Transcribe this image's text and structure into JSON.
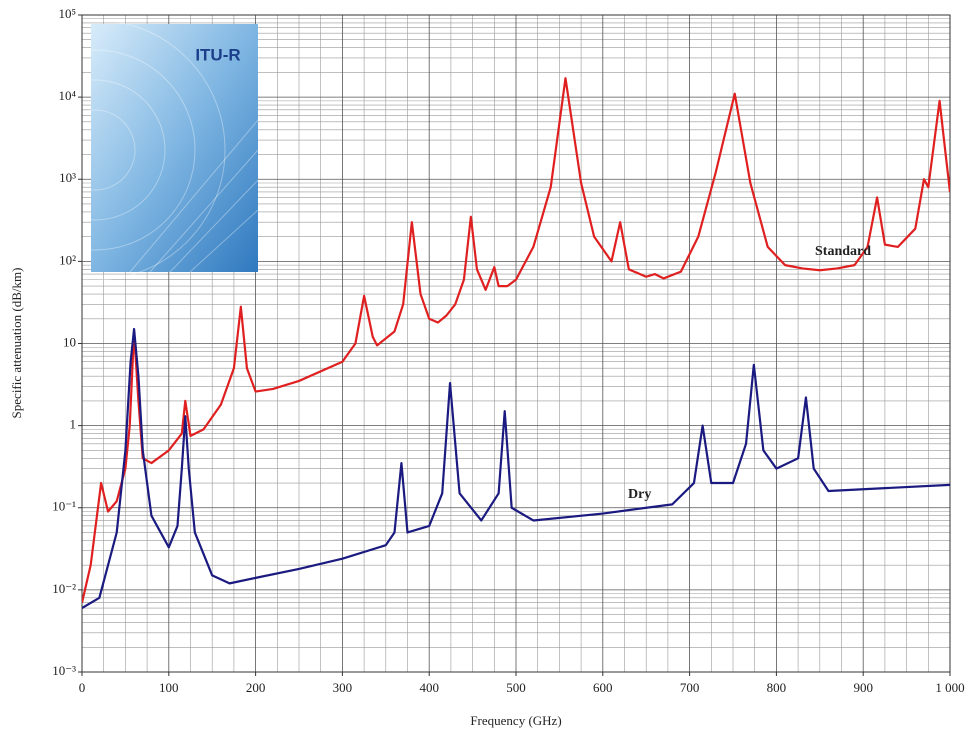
{
  "chart_data": {
    "type": "line",
    "x_label": "Frequency (GHz)",
    "y_label": "Specific attenuation (dB/km)",
    "yscale": "log",
    "grid": true,
    "minor_grid": true,
    "xlim": [
      0,
      1000
    ],
    "xticks": [
      0,
      100,
      200,
      300,
      400,
      500,
      600,
      700,
      800,
      900,
      {
        "value": 1000,
        "label": "1 000"
      }
    ],
    "ylim": [
      0.001,
      100000
    ],
    "yticks": [
      {
        "value": 0.001,
        "label": "10⁻³"
      },
      {
        "value": 0.01,
        "label": "10⁻²"
      },
      {
        "value": 0.1,
        "label": "10⁻¹"
      },
      1,
      10,
      {
        "value": 100,
        "label": "10²"
      },
      {
        "value": 1000,
        "label": "10³"
      },
      {
        "value": 10000,
        "label": "10⁴"
      },
      {
        "value": 100000,
        "label": "10⁵"
      }
    ],
    "inset": {
      "title": "ITU-R"
    },
    "series": [
      {
        "name": "Standard",
        "color": "#e02020",
        "x": [
          0,
          10,
          22,
          30,
          40,
          50,
          55,
          60,
          65,
          70,
          80,
          100,
          115,
          119,
          125,
          140,
          160,
          175,
          183,
          190,
          200,
          220,
          250,
          300,
          315,
          325,
          335,
          340,
          360,
          370,
          380,
          390,
          400,
          410,
          420,
          430,
          440,
          448,
          455,
          465,
          475,
          480,
          490,
          500,
          520,
          540,
          557,
          575,
          590,
          610,
          620,
          630,
          650,
          660,
          670,
          690,
          710,
          730,
          752,
          770,
          790,
          810,
          830,
          850,
          870,
          890,
          905,
          916,
          925,
          940,
          960,
          970,
          975,
          988,
          995,
          1000
        ],
        "values": [
          0.007,
          0.02,
          0.2,
          0.09,
          0.12,
          0.3,
          1.0,
          14,
          2,
          0.4,
          0.35,
          0.5,
          0.8,
          2.0,
          0.75,
          0.9,
          1.8,
          5,
          28,
          5,
          2.6,
          2.8,
          3.5,
          6,
          10,
          38,
          12,
          9.5,
          14,
          30,
          300,
          40,
          20,
          18,
          22,
          30,
          60,
          350,
          80,
          45,
          85,
          50,
          50,
          60,
          150,
          800,
          17000,
          900,
          200,
          100,
          300,
          80,
          65,
          70,
          62,
          75,
          200,
          1200,
          11000,
          900,
          150,
          90,
          82,
          78,
          82,
          90,
          150,
          600,
          160,
          150,
          250,
          1000,
          800,
          9000,
          2000,
          700
        ]
      },
      {
        "name": "Dry",
        "color": "#1a1a80",
        "x": [
          0,
          20,
          40,
          50,
          56,
          60,
          65,
          70,
          80,
          100,
          110,
          115,
          119,
          123,
          130,
          150,
          170,
          200,
          250,
          300,
          350,
          360,
          368,
          375,
          400,
          415,
          424,
          435,
          460,
          480,
          487,
          495,
          520,
          600,
          680,
          705,
          715,
          725,
          750,
          765,
          774,
          785,
          800,
          825,
          834,
          843,
          860,
          1000
        ],
        "values": [
          0.006,
          0.008,
          0.05,
          0.5,
          6,
          15,
          4,
          0.5,
          0.08,
          0.033,
          0.06,
          0.3,
          1.3,
          0.3,
          0.05,
          0.015,
          0.012,
          0.014,
          0.018,
          0.024,
          0.035,
          0.05,
          0.35,
          0.05,
          0.06,
          0.15,
          3.3,
          0.15,
          0.07,
          0.15,
          1.5,
          0.1,
          0.07,
          0.085,
          0.11,
          0.2,
          1.0,
          0.2,
          0.2,
          0.6,
          5.5,
          0.5,
          0.3,
          0.4,
          2.2,
          0.3,
          0.16,
          0.19
        ]
      }
    ]
  }
}
